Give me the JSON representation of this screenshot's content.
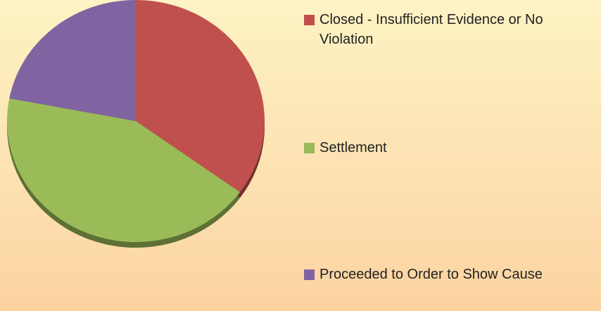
{
  "chart_data": {
    "type": "pie",
    "categories": [
      "Closed - Insufficient Evidence or No Violation",
      "Settlement",
      "Proceeded to Order to Show Cause"
    ],
    "values": [
      35,
      43,
      22
    ],
    "colors": [
      "#c0504d",
      "#9bbb59",
      "#8064a2"
    ]
  }
}
